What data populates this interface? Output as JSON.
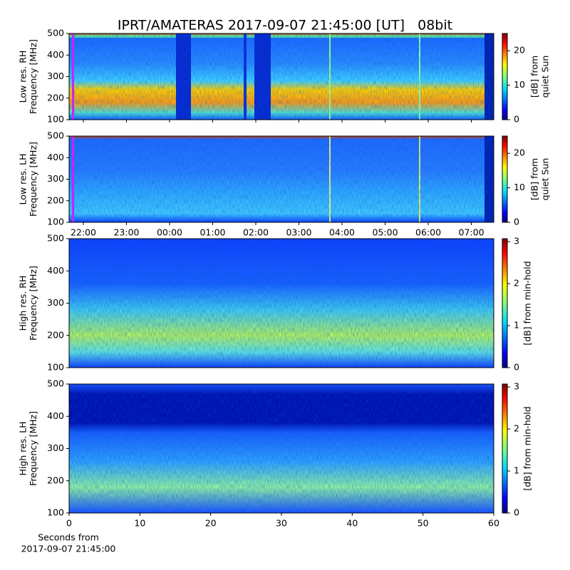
{
  "chart_data": [
    {
      "type": "heatmap",
      "title": "IPRT/AMATERAS 2017-09-07 21:45:00 [UT]   08bit",
      "ylabel": [
        "Low res. RH",
        "Frequency [MHz]"
      ],
      "ylim": [
        100,
        500
      ],
      "yticks": [
        100,
        200,
        300,
        400,
        500
      ],
      "colorbar_label": [
        "[dB] from",
        "quiet Sun"
      ],
      "clim": [
        0,
        25
      ],
      "cticks": [
        0,
        10,
        20
      ]
    },
    {
      "type": "heatmap",
      "ylabel": [
        "Low res. LH",
        "Frequency [MHz]"
      ],
      "ylim": [
        100,
        500
      ],
      "yticks": [
        100,
        200,
        300,
        400,
        500
      ],
      "colorbar_label": [
        "[dB] from",
        "quiet Sun"
      ],
      "clim": [
        0,
        25
      ],
      "cticks": [
        0,
        10,
        20
      ],
      "xlim": [
        21.67,
        31.52
      ],
      "xticks": [
        {
          "value": 22,
          "label": "22:00"
        },
        {
          "value": 23,
          "label": "23:00"
        },
        {
          "value": 24,
          "label": "00:00"
        },
        {
          "value": 25,
          "label": "01:00"
        },
        {
          "value": 26,
          "label": "02:00"
        },
        {
          "value": 27,
          "label": "03:00"
        },
        {
          "value": 28,
          "label": "04:00"
        },
        {
          "value": 29,
          "label": "05:00"
        },
        {
          "value": 30,
          "label": "06:00"
        },
        {
          "value": 31,
          "label": "07:00"
        }
      ]
    },
    {
      "type": "heatmap",
      "ylabel": [
        "High res. RH",
        "Frequency [MHz]"
      ],
      "ylim": [
        100,
        500
      ],
      "yticks": [
        100,
        200,
        300,
        400,
        500
      ],
      "colorbar_label": [
        "[dB] from min-hold"
      ],
      "clim": [
        0,
        3.07
      ],
      "cticks": [
        0,
        1,
        2,
        3
      ]
    },
    {
      "type": "heatmap",
      "ylabel": [
        "High res. LH",
        "Frequency [MHz]"
      ],
      "ylim": [
        100,
        500
      ],
      "yticks": [
        100,
        200,
        300,
        400,
        500
      ],
      "colorbar_label": [
        "[dB] from min-hold"
      ],
      "clim": [
        0,
        3.07
      ],
      "cticks": [
        0,
        1,
        2,
        3
      ],
      "xlim": [
        0,
        60
      ],
      "xticks": [
        0,
        10,
        20,
        30,
        40,
        50,
        60
      ],
      "xlabel": [
        "Seconds from",
        "2017-09-07 21:45:00"
      ]
    }
  ]
}
